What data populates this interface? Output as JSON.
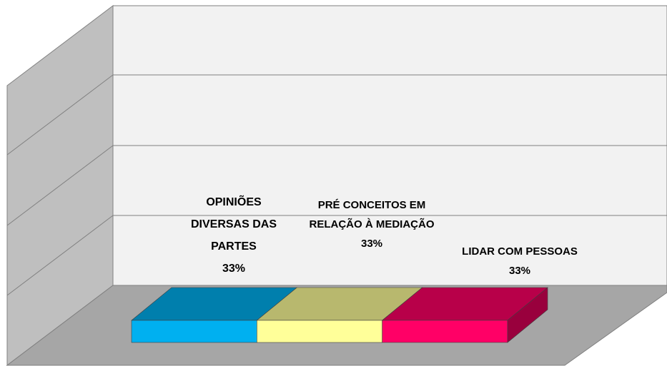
{
  "chart_data": {
    "type": "bar",
    "series": [
      {
        "name": "OPINIÕES DIVERSAS DAS PARTES",
        "color": "#00b0f0",
        "values": [
          33
        ],
        "value_labels": [
          "33%"
        ]
      },
      {
        "name": "PRÉ CONCEITOS EM RELAÇÃO À MEDIAÇÃO",
        "color": "#ffff99",
        "values": [
          33
        ],
        "value_labels": [
          "33%"
        ]
      },
      {
        "name": "LIDAR COM PESSOAS",
        "color": "#ff0066",
        "values": [
          33
        ],
        "value_labels": [
          "33%"
        ]
      }
    ]
  }
}
